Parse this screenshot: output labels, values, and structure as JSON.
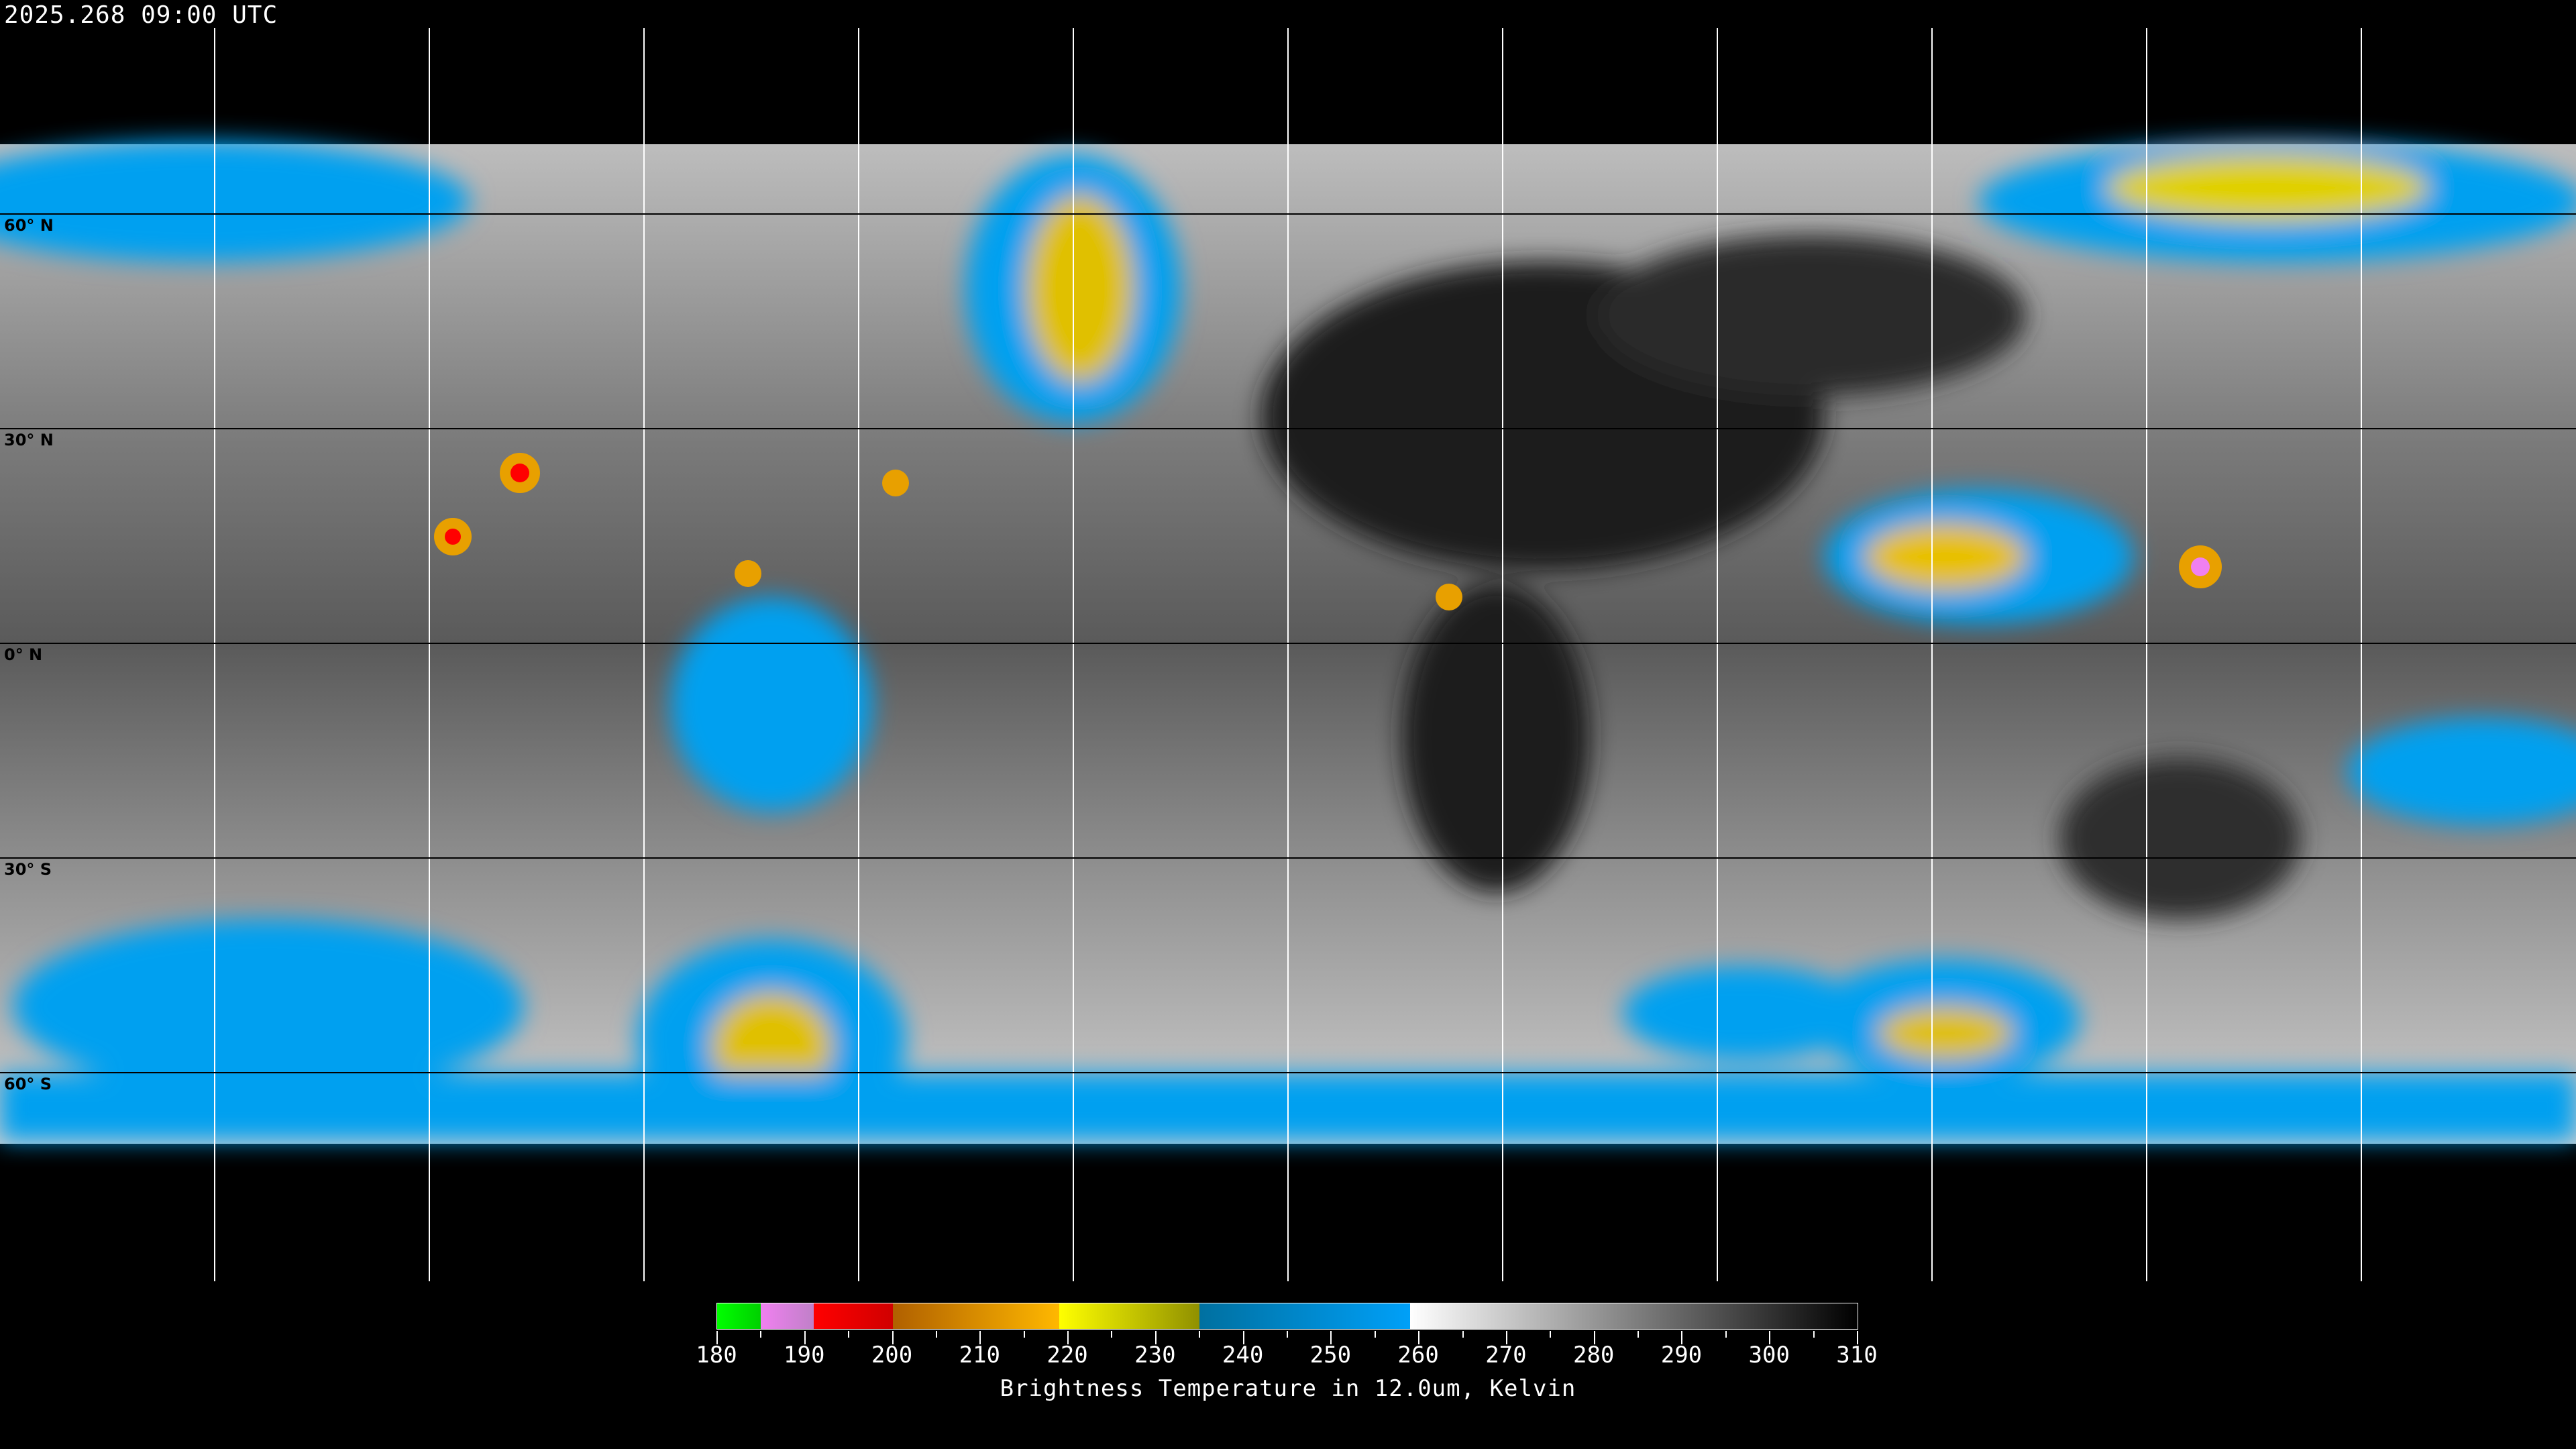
{
  "header": {
    "title": "2025.268 09:00 UTC"
  },
  "map": {
    "projection": "equirectangular",
    "product": "infrared brightness temperature composite",
    "lat_labels": [
      "60° N",
      "30° N",
      "0° N",
      "30° S",
      "60° S"
    ],
    "gridline_color": "#ffffff",
    "coastline_color": "#ffffff"
  },
  "colorbar": {
    "title": "Brightness Temperature in 12.0um, Kelvin",
    "range": [
      180,
      310
    ],
    "tick_labels": [
      "180",
      "190",
      "200",
      "210",
      "220",
      "230",
      "240",
      "250",
      "260",
      "270",
      "280",
      "290",
      "300",
      "310"
    ],
    "segments": [
      {
        "from": 180,
        "to": 185,
        "colors": [
          "#00ff00",
          "#00d000"
        ]
      },
      {
        "from": 185,
        "to": 191,
        "colors": [
          "#f080f0",
          "#c080c8"
        ]
      },
      {
        "from": 191,
        "to": 200,
        "colors": [
          "#ff0000",
          "#d00000"
        ]
      },
      {
        "from": 200,
        "to": 219,
        "colors": [
          "#b06000",
          "#ffb800"
        ]
      },
      {
        "from": 219,
        "to": 235,
        "colors": [
          "#ffff00",
          "#909000"
        ]
      },
      {
        "from": 235,
        "to": 259,
        "colors": [
          "#0070a0",
          "#00a0f8"
        ]
      },
      {
        "from": 259,
        "to": 310,
        "colors": [
          "#ffffff",
          "#000000"
        ]
      }
    ]
  }
}
